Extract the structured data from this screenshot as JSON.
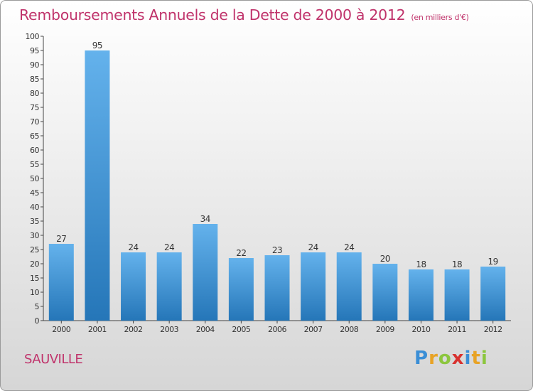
{
  "title": "Remboursements Annuels de la Dette de 2000 à 2012",
  "unit": "(en milliers d'€)",
  "commune": "SAUVILLE",
  "brand": {
    "letters": [
      "P",
      "r",
      "o",
      "x",
      "i",
      "t",
      "i"
    ],
    "colors": [
      "#3a8ed6",
      "#e8a325",
      "#8cc63e",
      "#d8322f",
      "#3a8ed6",
      "#e8a325",
      "#8cc63e"
    ]
  },
  "colors": {
    "title": "#c0336b",
    "bar_light": "#64b2ec",
    "bar_dark": "#2576b8"
  },
  "chart_data": {
    "type": "bar",
    "title": "Remboursements Annuels de la Dette de 2000 à 2012",
    "xlabel": "",
    "ylabel": "",
    "categories": [
      "2000",
      "2001",
      "2002",
      "2003",
      "2004",
      "2005",
      "2006",
      "2007",
      "2008",
      "2009",
      "2010",
      "2011",
      "2012"
    ],
    "values": [
      27,
      95,
      24,
      24,
      34,
      22,
      23,
      24,
      24,
      20,
      18,
      18,
      19
    ],
    "ylim": [
      0,
      100
    ],
    "yticks": [
      0,
      5,
      10,
      15,
      20,
      25,
      30,
      35,
      40,
      45,
      50,
      55,
      60,
      65,
      70,
      75,
      80,
      85,
      90,
      95,
      100
    ],
    "grid": false
  }
}
